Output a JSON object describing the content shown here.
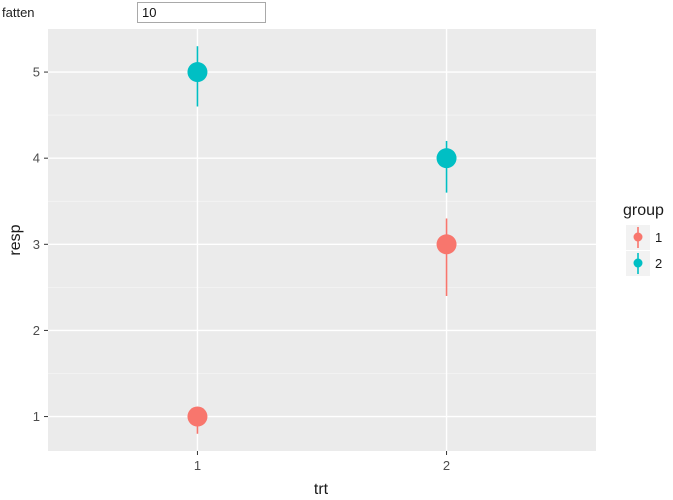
{
  "control": {
    "label": "fatten",
    "value": "10"
  },
  "chart_data": {
    "type": "scatter",
    "xlabel": "trt",
    "ylabel": "resp",
    "x_categories": [
      "1",
      "2"
    ],
    "y_ticks": [
      1,
      2,
      3,
      4,
      5
    ],
    "ylim": [
      0.6,
      5.5
    ],
    "grid": true,
    "legend": {
      "title": "group",
      "placement": "right",
      "entries": [
        "1",
        "2"
      ]
    },
    "colors": {
      "1": "#F8766D",
      "2": "#00BFC4"
    },
    "points": [
      {
        "x": "1",
        "group": "1",
        "y": 1,
        "lower": 0.8,
        "upper": 1.1
      },
      {
        "x": "1",
        "group": "2",
        "y": 5,
        "lower": 4.6,
        "upper": 5.3
      },
      {
        "x": "2",
        "group": "1",
        "y": 3,
        "lower": 2.4,
        "upper": 3.3
      },
      {
        "x": "2",
        "group": "2",
        "y": 4,
        "lower": 3.6,
        "upper": 4.2
      }
    ]
  }
}
